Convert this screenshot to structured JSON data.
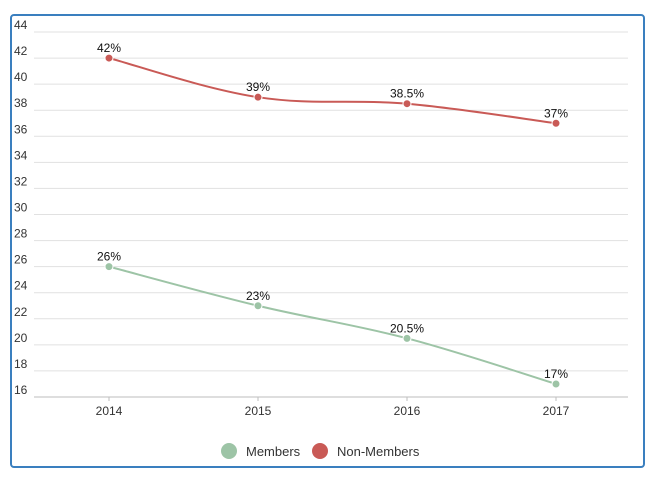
{
  "chart_data": {
    "type": "line",
    "categories": [
      "2014",
      "2015",
      "2016",
      "2017"
    ],
    "series": [
      {
        "name": "Members",
        "values": [
          26,
          23,
          20.5,
          17
        ],
        "labels": [
          "26%",
          "23%",
          "20.5%",
          "17%"
        ],
        "color": "#9dc4a6"
      },
      {
        "name": "Non-Members",
        "values": [
          42,
          39,
          38.5,
          37
        ],
        "labels": [
          "42%",
          "39%",
          "38.5%",
          "37%"
        ],
        "color": "#c95a56"
      }
    ],
    "ylim": [
      16,
      44
    ],
    "yticks": [
      "16",
      "18",
      "20",
      "22",
      "24",
      "26",
      "28",
      "30",
      "32",
      "34",
      "36",
      "38",
      "40",
      "42",
      "44"
    ],
    "grid": true,
    "legend": "bottom-center",
    "title": "",
    "xlabel": "",
    "ylabel": ""
  }
}
